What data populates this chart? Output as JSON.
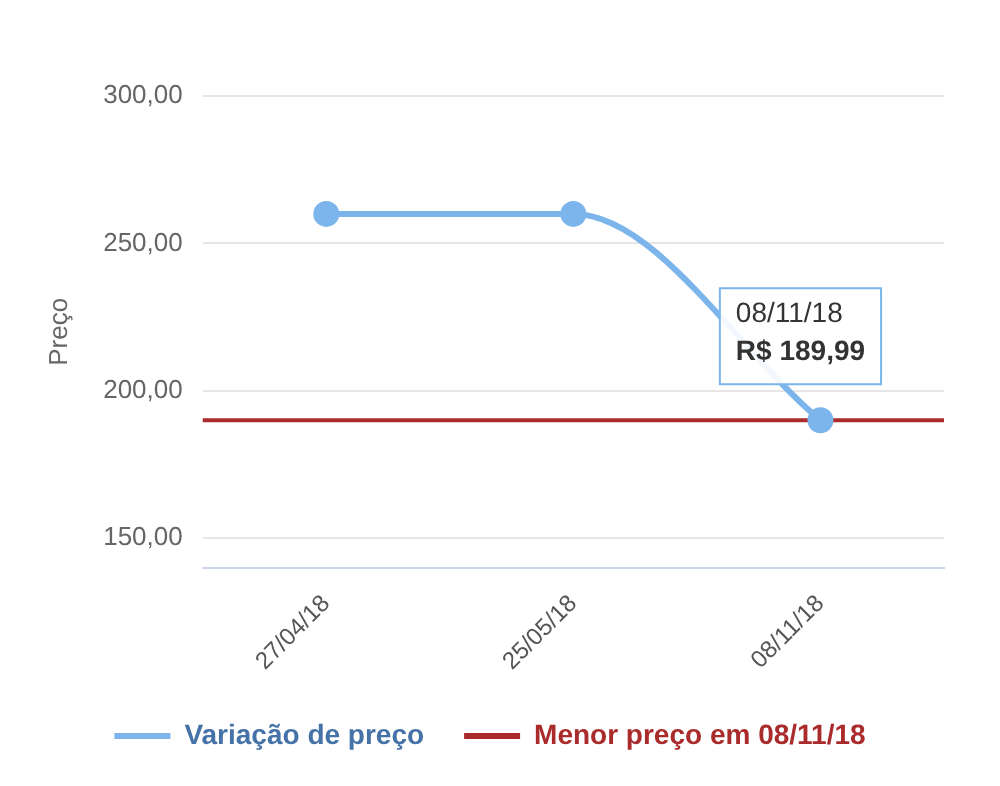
{
  "chart_data": {
    "type": "line",
    "ylabel": "Preço",
    "categories": [
      "27/04/18",
      "25/05/18",
      "08/11/18"
    ],
    "series": [
      {
        "name": "Variação de preço",
        "color": "#7cb5ec",
        "values": [
          260,
          260,
          189.99
        ]
      }
    ],
    "ylim": [
      140,
      300
    ],
    "yticks": [
      {
        "value": 150,
        "label": "150,00"
      },
      {
        "value": 200,
        "label": "200,00"
      },
      {
        "value": 250,
        "label": "250,00"
      },
      {
        "value": 300,
        "label": "300,00"
      }
    ],
    "ref_lines": [
      {
        "axis": "y",
        "value": 189.99,
        "label": "Menor preço em 08/11/18",
        "color": "#aa2b2b"
      }
    ],
    "annotations": [
      "08/11/18",
      "R$ 189,99"
    ],
    "grid": "y",
    "legend": "bottom",
    "marker": "circle",
    "line_style": "solid"
  }
}
